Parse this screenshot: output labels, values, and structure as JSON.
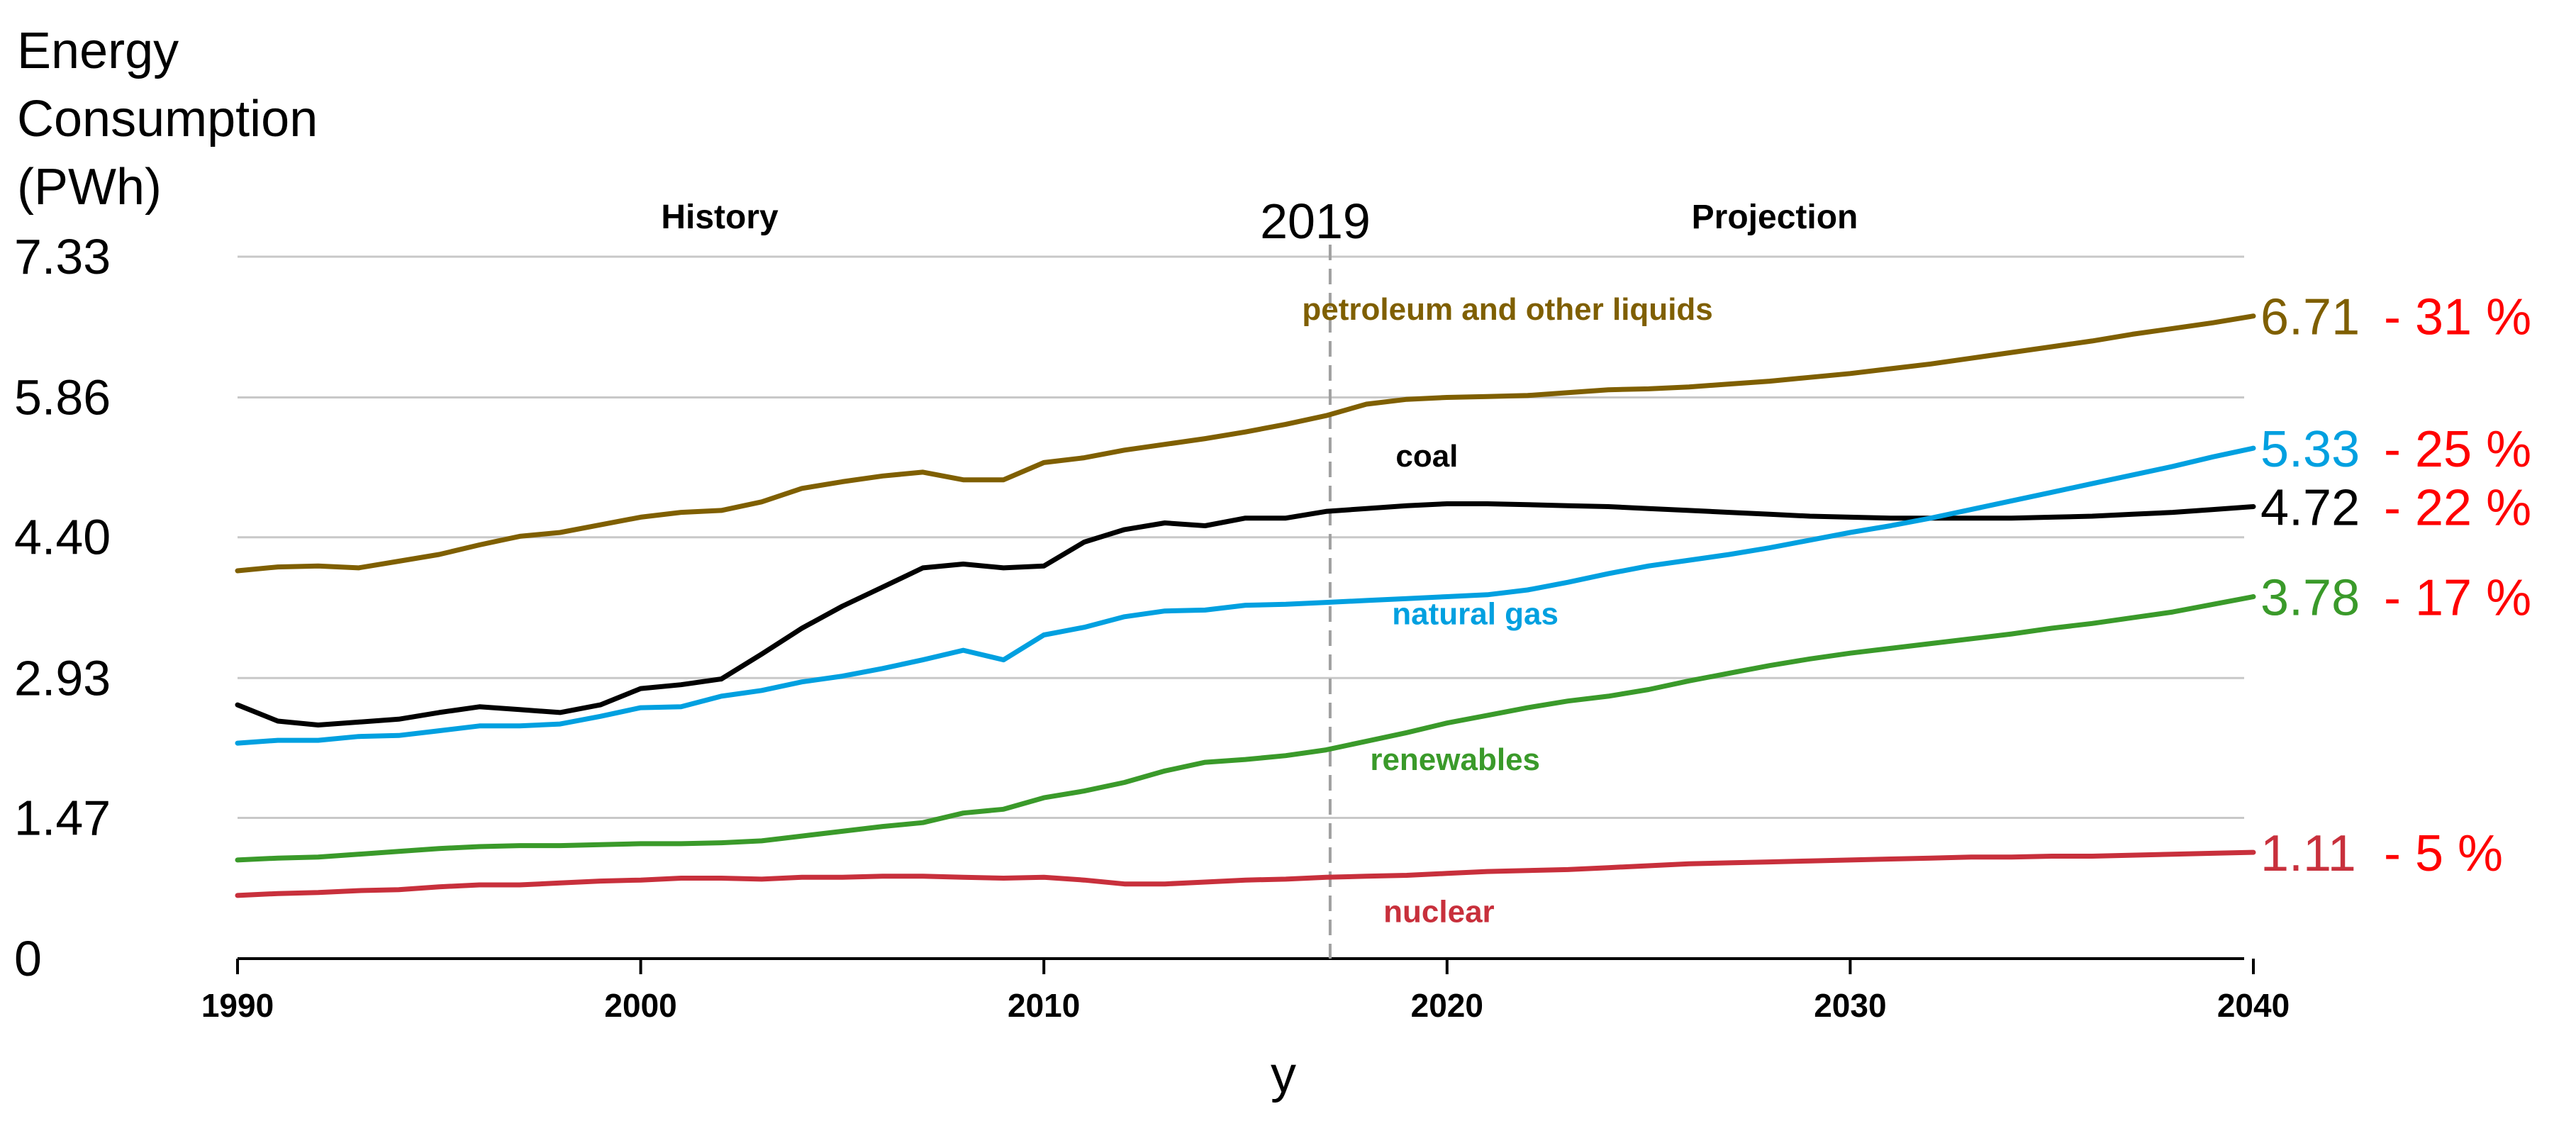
{
  "chart_data": {
    "type": "line",
    "title": "",
    "ylabel_lines": [
      "Energy",
      "Consumption",
      "(PWh)"
    ],
    "xlabel": "y",
    "ylim": [
      0,
      7.33
    ],
    "xlim": [
      1990,
      2040
    ],
    "yticks": [
      "0",
      "1.47",
      "2.93",
      "4.40",
      "5.86",
      "7.33"
    ],
    "xticks": [
      "1990",
      "2000",
      "2010",
      "2020",
      "2030",
      "2040"
    ],
    "grid": true,
    "history_label": "History",
    "projection_label": "Projection",
    "marker_label": "2019",
    "marker_x": 2017.1,
    "x": [
      1990,
      1991,
      1992,
      1993,
      1994,
      1995,
      1996,
      1997,
      1998,
      1999,
      2000,
      2001,
      2002,
      2003,
      2004,
      2005,
      2006,
      2007,
      2008,
      2009,
      2010,
      2011,
      2012,
      2013,
      2014,
      2015,
      2016,
      2017,
      2018,
      2019,
      2020,
      2021,
      2022,
      2023,
      2024,
      2025,
      2026,
      2027,
      2028,
      2029,
      2030,
      2031,
      2032,
      2033,
      2034,
      2035,
      2036,
      2037,
      2038,
      2039,
      2040
    ],
    "series": [
      {
        "name": "petroleum and other liquids",
        "color": "#7f5f00",
        "end_value": "6.71",
        "share": "- 31 %",
        "values": [
          4.05,
          4.09,
          4.1,
          4.08,
          4.15,
          4.22,
          4.32,
          4.41,
          4.45,
          4.53,
          4.61,
          4.66,
          4.68,
          4.77,
          4.91,
          4.98,
          5.04,
          5.08,
          5.0,
          5.0,
          5.18,
          5.23,
          5.31,
          5.37,
          5.43,
          5.5,
          5.58,
          5.67,
          5.79,
          5.84,
          5.86,
          5.87,
          5.88,
          5.91,
          5.94,
          5.95,
          5.97,
          6.0,
          6.03,
          6.07,
          6.11,
          6.16,
          6.21,
          6.27,
          6.33,
          6.39,
          6.45,
          6.52,
          6.58,
          6.64,
          6.71
        ]
      },
      {
        "name": "coal",
        "color": "#000000",
        "end_value": "4.72",
        "share": "- 22 %",
        "values": [
          2.65,
          2.48,
          2.44,
          2.47,
          2.5,
          2.57,
          2.63,
          2.6,
          2.57,
          2.65,
          2.82,
          2.86,
          2.92,
          3.18,
          3.45,
          3.68,
          3.88,
          4.08,
          4.12,
          4.08,
          4.1,
          4.35,
          4.48,
          4.55,
          4.52,
          4.6,
          4.6,
          4.67,
          4.7,
          4.73,
          4.75,
          4.75,
          4.74,
          4.73,
          4.72,
          4.7,
          4.68,
          4.66,
          4.64,
          4.62,
          4.61,
          4.6,
          4.6,
          4.6,
          4.6,
          4.61,
          4.62,
          4.64,
          4.66,
          4.69,
          4.72
        ]
      },
      {
        "name": "natural gas",
        "color": "#00a0e0",
        "end_value": "5.33",
        "share": "- 25 %",
        "values": [
          2.25,
          2.28,
          2.28,
          2.32,
          2.33,
          2.38,
          2.43,
          2.43,
          2.45,
          2.53,
          2.62,
          2.63,
          2.74,
          2.8,
          2.89,
          2.95,
          3.03,
          3.12,
          3.22,
          3.12,
          3.38,
          3.46,
          3.57,
          3.63,
          3.64,
          3.69,
          3.7,
          3.72,
          3.74,
          3.76,
          3.78,
          3.8,
          3.85,
          3.93,
          4.02,
          4.1,
          4.16,
          4.22,
          4.29,
          4.37,
          4.45,
          4.52,
          4.6,
          4.69,
          4.78,
          4.87,
          4.96,
          5.05,
          5.14,
          5.24,
          5.33
        ]
      },
      {
        "name": "renewables",
        "color": "#3a9a2a",
        "end_value": "3.78",
        "share": "- 17 %",
        "values": [
          1.03,
          1.05,
          1.06,
          1.09,
          1.12,
          1.15,
          1.17,
          1.18,
          1.18,
          1.19,
          1.2,
          1.2,
          1.21,
          1.23,
          1.28,
          1.33,
          1.38,
          1.42,
          1.52,
          1.56,
          1.68,
          1.75,
          1.84,
          1.96,
          2.05,
          2.08,
          2.12,
          2.18,
          2.27,
          2.36,
          2.46,
          2.54,
          2.62,
          2.69,
          2.74,
          2.81,
          2.9,
          2.98,
          3.06,
          3.13,
          3.19,
          3.24,
          3.29,
          3.34,
          3.39,
          3.45,
          3.5,
          3.56,
          3.62,
          3.7,
          3.78
        ]
      },
      {
        "name": "nuclear",
        "color": "#c8303c",
        "end_value": "1.11",
        "share": "- 5 %",
        "values": [
          0.66,
          0.68,
          0.69,
          0.71,
          0.72,
          0.75,
          0.77,
          0.77,
          0.79,
          0.81,
          0.82,
          0.84,
          0.84,
          0.83,
          0.85,
          0.85,
          0.86,
          0.86,
          0.85,
          0.84,
          0.85,
          0.82,
          0.78,
          0.78,
          0.8,
          0.82,
          0.83,
          0.85,
          0.86,
          0.87,
          0.89,
          0.91,
          0.92,
          0.93,
          0.95,
          0.97,
          0.99,
          1.0,
          1.01,
          1.02,
          1.03,
          1.04,
          1.05,
          1.06,
          1.06,
          1.07,
          1.07,
          1.08,
          1.09,
          1.1,
          1.11
        ]
      }
    ]
  }
}
